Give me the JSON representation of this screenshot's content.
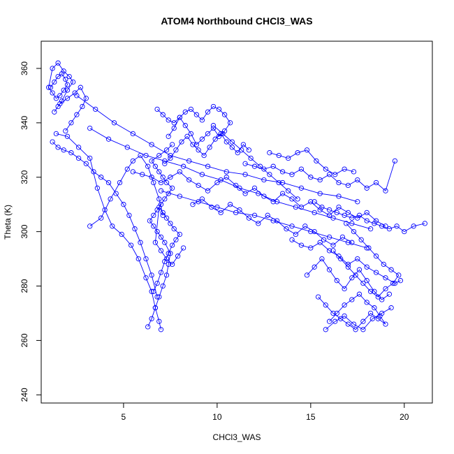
{
  "chart_data": {
    "type": "line",
    "title": "ATOM4 Northbound CHCl3_WAS",
    "xlabel": "CHCl3_WAS",
    "ylabel": "Theta (K)",
    "xlim": [
      0.6,
      21.5
    ],
    "ylim": [
      237,
      370
    ],
    "xticks": [
      5,
      10,
      15,
      20
    ],
    "yticks": [
      240,
      260,
      280,
      300,
      320,
      340,
      360
    ],
    "marker": "open-circle",
    "grid": false,
    "legend": "none",
    "series_color": "#0000ff",
    "series": [
      {
        "x": [
          1.1,
          1.3,
          1.5,
          1.7,
          1.9,
          2.0,
          1.8,
          1.6,
          1.4,
          1.2,
          1.0,
          1.2,
          1.5,
          1.8,
          2.1,
          2.3,
          2.0,
          1.7,
          1.5,
          1.3,
          1.6,
          2.0,
          2.4,
          2.7,
          3.0,
          2.8,
          2.5,
          2.2,
          1.9
        ],
        "y": [
          353,
          355,
          357,
          358,
          356,
          354,
          352,
          350,
          349,
          351,
          353,
          360,
          362,
          359,
          357,
          355,
          352,
          348,
          346,
          344,
          347,
          349,
          351,
          353,
          349,
          346,
          343,
          340,
          337
        ]
      },
      {
        "x": [
          1.2,
          1.5,
          1.8,
          2.2,
          2.6,
          3.0,
          3.4,
          3.8,
          4.2,
          4.6,
          5.0,
          5.3,
          5.6,
          5.9,
          6.2,
          6.5,
          6.8
        ],
        "y": [
          333,
          331,
          330,
          329,
          327,
          325,
          322,
          320,
          318,
          314,
          310,
          306,
          301,
          296,
          290,
          284,
          276
        ]
      },
      {
        "x": [
          1.4,
          2.0,
          2.6,
          3.2,
          3.6,
          4.0,
          4.4,
          4.9,
          5.4,
          5.8,
          6.2,
          6.5,
          6.7,
          6.9,
          7.0
        ],
        "y": [
          336,
          335,
          331,
          327,
          316,
          308,
          302,
          299,
          295,
          290,
          283,
          278,
          272,
          267,
          264
        ]
      },
      {
        "x": [
          3.2,
          3.8,
          4.3,
          4.8,
          5.2,
          5.5,
          5.9,
          6.3,
          6.6,
          6.9,
          7.1
        ],
        "y": [
          302,
          305,
          312,
          318,
          323,
          326,
          328,
          324,
          318,
          312,
          306
        ]
      },
      {
        "x": [
          6.3,
          6.5,
          6.7,
          6.9,
          7.1,
          7.3,
          7.4,
          7.5,
          7.2,
          7.0,
          6.8,
          6.6,
          6.4,
          6.6,
          6.8,
          7.0,
          7.2,
          7.4,
          7.6,
          7.3,
          7.1,
          6.9,
          6.7,
          6.5,
          6.9,
          7.3,
          7.6
        ],
        "y": [
          265,
          268,
          272,
          276,
          280,
          284,
          288,
          292,
          296,
          298,
          300,
          302,
          304,
          306,
          308,
          310,
          312,
          314,
          316,
          318,
          320,
          322,
          324,
          326,
          328,
          330,
          332
        ]
      },
      {
        "x": [
          6.6,
          6.8,
          7.0,
          7.2,
          7.4,
          7.6,
          7.8,
          8.0,
          7.7,
          7.5,
          7.3,
          7.1,
          6.9,
          6.7,
          7.0,
          7.3,
          7.6,
          7.9,
          8.2
        ],
        "y": [
          278,
          281,
          285,
          289,
          292,
          295,
          297,
          299,
          301,
          303,
          305,
          307,
          309,
          296,
          293,
          290,
          288,
          291,
          294
        ]
      },
      {
        "x": [
          6.8,
          7.1,
          7.4,
          7.7,
          8.0,
          8.3,
          8.6,
          8.9,
          9.2,
          9.5,
          9.8,
          10.1,
          10.4,
          10.7,
          10.4,
          10.1,
          9.8,
          9.5,
          9.2,
          8.9,
          8.6,
          8.3,
          8.0,
          7.7,
          7.4
        ],
        "y": [
          345,
          343,
          341,
          340,
          342,
          344,
          345,
          343,
          341,
          344,
          346,
          345,
          343,
          340,
          337,
          335,
          338,
          336,
          334,
          332,
          336,
          339,
          342,
          338,
          335
        ]
      },
      {
        "x": [
          7.2,
          7.5,
          7.8,
          8.1,
          8.4,
          8.7,
          9.0,
          9.3,
          9.6,
          9.9,
          10.2,
          10.5,
          10.8,
          11.1,
          11.4,
          11.7
        ],
        "y": [
          325,
          327,
          330,
          333,
          335,
          332,
          330,
          328,
          331,
          334,
          336,
          333,
          331,
          329,
          332,
          330
        ]
      },
      {
        "x": [
          5.5,
          6.0,
          6.5,
          7.0,
          7.5,
          8.0,
          8.5,
          9.0,
          9.5,
          10.0,
          10.5,
          11.0,
          11.5,
          12.0,
          12.5,
          13.0,
          13.5,
          14.0,
          14.5,
          15.0,
          15.5,
          16.0,
          16.5,
          17.0,
          17.5,
          18.0,
          18.5,
          19.0
        ],
        "y": [
          322,
          321,
          320,
          318,
          320,
          322,
          319,
          317,
          315,
          318,
          320,
          317,
          314,
          316,
          313,
          311,
          314,
          312,
          309,
          311,
          308,
          306,
          309,
          307,
          305,
          307,
          304,
          302
        ]
      },
      {
        "x": [
          8.7,
          9.2,
          9.7,
          10.2,
          10.7,
          11.2,
          11.7,
          12.2,
          12.7,
          13.2,
          13.7,
          14.2,
          14.7,
          15.2,
          15.7,
          16.2,
          16.7,
          17.2
        ],
        "y": [
          310,
          312,
          309,
          307,
          310,
          308,
          305,
          303,
          306,
          304,
          301,
          299,
          302,
          300,
          297,
          295,
          298,
          296
        ]
      },
      {
        "x": [
          11.5,
          12.0,
          12.5,
          13.0,
          13.5,
          14.0,
          14.5,
          15.0,
          15.5,
          16.0,
          16.5,
          17.0,
          17.5,
          18.0,
          18.5,
          19.0,
          19.5
        ],
        "y": [
          325,
          324,
          323,
          324,
          322,
          321,
          323,
          320,
          319,
          321,
          318,
          317,
          319,
          316,
          318,
          315,
          326
        ]
      },
      {
        "x": [
          12.8,
          13.3,
          13.8,
          14.3,
          14.8,
          15.3,
          15.8,
          16.3,
          16.8,
          17.3
        ],
        "y": [
          329,
          328,
          327,
          329,
          330,
          326,
          323,
          321,
          323,
          322
        ]
      },
      {
        "x": [
          15.2,
          15.6,
          16.0,
          16.4,
          16.8,
          17.2,
          17.6,
          18.0,
          18.4,
          18.8,
          19.2,
          19.6,
          20.0,
          20.5,
          21.1
        ],
        "y": [
          311,
          309,
          308,
          307,
          306,
          305,
          306,
          304,
          303,
          302,
          301,
          302,
          300,
          302,
          303
        ]
      },
      {
        "x": [
          14.0,
          14.5,
          15.0,
          15.5,
          16.0,
          16.5,
          17.0,
          17.5,
          18.0,
          18.5,
          19.0,
          19.5,
          19.8
        ],
        "y": [
          297,
          295,
          294,
          296,
          293,
          291,
          288,
          290,
          287,
          285,
          283,
          281,
          282
        ]
      },
      {
        "x": [
          14.8,
          15.2,
          15.6,
          16.0,
          16.4,
          16.8,
          17.2,
          17.6,
          18.0,
          18.4,
          18.8,
          19.2
        ],
        "y": [
          284,
          287,
          290,
          286,
          282,
          279,
          283,
          286,
          282,
          278,
          275,
          277
        ]
      },
      {
        "x": [
          15.4,
          15.8,
          16.2,
          16.6,
          17.0,
          17.4,
          17.8,
          18.2,
          18.6,
          19.0,
          18.7,
          18.4,
          18.0,
          17.6,
          17.2,
          16.8,
          16.4,
          16.0
        ],
        "y": [
          276,
          273,
          270,
          268,
          266,
          264,
          267,
          270,
          268,
          266,
          269,
          272,
          274,
          277,
          275,
          273,
          270,
          267
        ]
      },
      {
        "x": [
          16.9,
          17.3,
          17.7,
          18.1,
          18.5,
          18.9,
          19.3,
          19.7,
          19.4,
          19.0,
          18.6,
          18.2,
          17.8,
          17.4,
          17.0,
          16.6,
          16.2
        ],
        "y": [
          303,
          300,
          297,
          294,
          291,
          288,
          286,
          284,
          281,
          279,
          276,
          278,
          281,
          284,
          287,
          290,
          293
        ]
      },
      {
        "x": [
          15.8,
          16.3,
          16.8,
          17.3,
          17.8,
          18.3,
          18.8,
          19.3
        ],
        "y": [
          264,
          267,
          269,
          266,
          264,
          268,
          270,
          272
        ]
      },
      {
        "x": [
          2.5,
          3.5,
          4.5,
          5.5,
          6.5,
          7.5,
          8.5,
          9.5,
          10.5,
          11.5,
          12.5,
          13.5,
          14.5,
          15.5,
          16.5,
          17.5
        ],
        "y": [
          350,
          345,
          340,
          336,
          332,
          328,
          326,
          324,
          322,
          321,
          319,
          318,
          316,
          314,
          313,
          311
        ]
      },
      {
        "x": [
          3.2,
          4.2,
          5.2,
          6.2,
          7.2,
          8.2,
          9.2,
          10.2,
          11.2,
          12.2,
          13.2,
          14.2,
          15.2,
          16.2,
          17.2,
          18.2
        ],
        "y": [
          338,
          334,
          331,
          328,
          326,
          324,
          321,
          319,
          316,
          314,
          311,
          309,
          307,
          305,
          303,
          301
        ]
      },
      {
        "x": [
          7.0,
          8.0,
          9.0,
          10.0,
          11.0,
          12.0,
          13.0,
          14.0,
          15.0,
          16.0,
          17.0,
          18.0
        ],
        "y": [
          315,
          313,
          311,
          309,
          307,
          306,
          304,
          302,
          300,
          298,
          296,
          294
        ]
      },
      {
        "x": [
          9.8,
          10.3,
          10.8,
          11.3,
          11.8,
          12.3,
          12.8,
          13.3,
          13.8,
          14.3
        ],
        "y": [
          339,
          336,
          333,
          330,
          327,
          324,
          321,
          318,
          315,
          312
        ]
      }
    ]
  }
}
